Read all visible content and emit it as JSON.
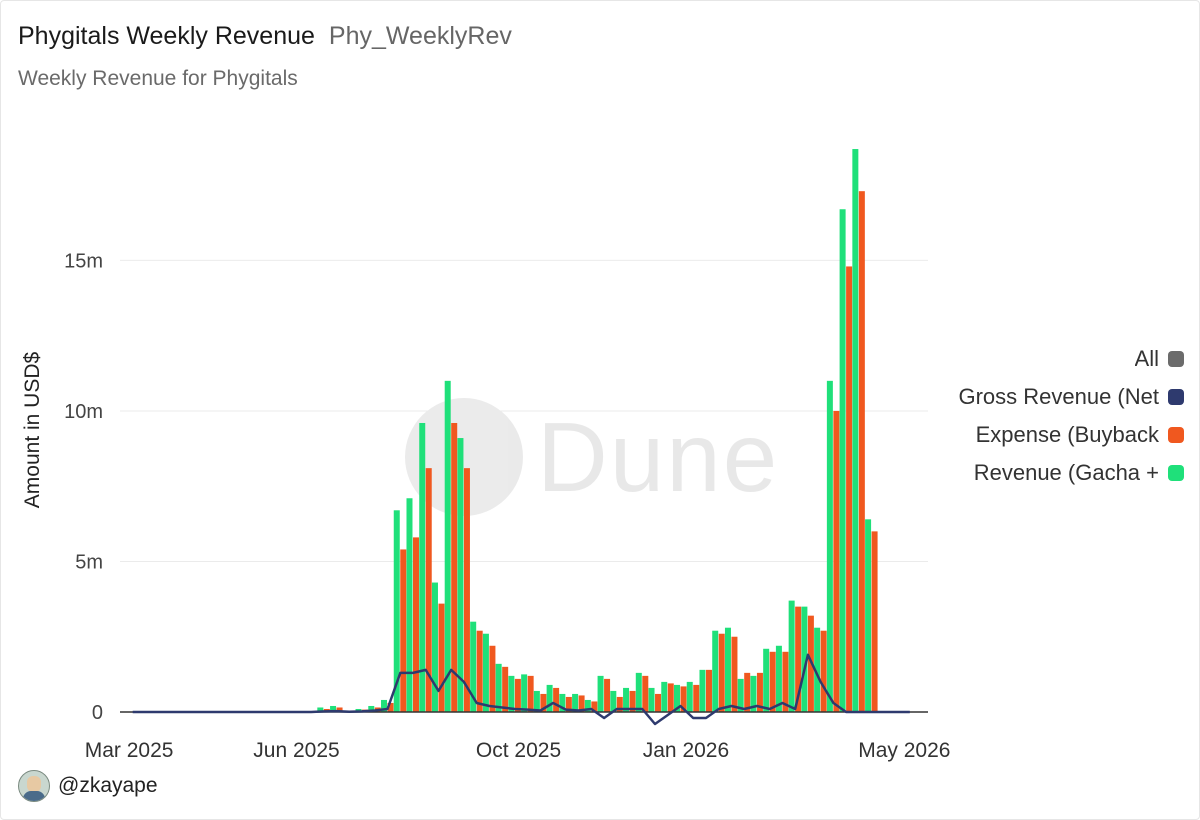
{
  "header": {
    "title": "Phygitals Weekly Revenue",
    "query_name": "Phy_WeeklyRev",
    "description": "Weekly Revenue for Phygitals"
  },
  "author": {
    "handle": "@zkayape"
  },
  "watermark": {
    "text": "Dune"
  },
  "colors": {
    "all": "#6b6b6b",
    "gross": "#2e3a6e",
    "expense": "#f0581f",
    "revenue": "#1fe07a"
  },
  "legend": {
    "items": [
      {
        "label": "All",
        "color": "#6b6b6b"
      },
      {
        "label": "Gross Revenue (Net",
        "color": "#2e3a6e"
      },
      {
        "label": "Expense (Buyback",
        "color": "#f0581f"
      },
      {
        "label": "Revenue (Gacha +",
        "color": "#1fe07a"
      }
    ]
  },
  "chart_data": {
    "type": "bar",
    "ylabel": "Amount in USD$",
    "ylim": [
      0,
      19000000
    ],
    "yticks": [
      0,
      5000000,
      10000000,
      15000000
    ],
    "ytick_labels": [
      "0",
      "5m",
      "10m",
      "15m"
    ],
    "xticks": [
      {
        "date": "2025-03-01",
        "label": "Mar 2025"
      },
      {
        "date": "2025-06-01",
        "label": "Jun 2025"
      },
      {
        "date": "2025-10-01",
        "label": "Oct 2025"
      },
      {
        "date": "2026-01-01",
        "label": "Jan 2026"
      },
      {
        "date": "2026-05-01",
        "label": "May 2026"
      }
    ],
    "x": [
      "2025-03-03",
      "2025-03-10",
      "2025-03-17",
      "2025-03-24",
      "2025-03-31",
      "2025-04-07",
      "2025-04-14",
      "2025-04-21",
      "2025-04-28",
      "2025-05-05",
      "2025-05-12",
      "2025-05-19",
      "2025-05-26",
      "2025-06-02",
      "2025-06-09",
      "2025-06-16",
      "2025-06-23",
      "2025-06-30",
      "2025-07-07",
      "2025-07-14",
      "2025-07-21",
      "2025-07-28",
      "2025-08-04",
      "2025-08-11",
      "2025-08-18",
      "2025-08-25",
      "2025-09-01",
      "2025-09-08",
      "2025-09-15",
      "2025-09-22",
      "2025-09-29",
      "2025-10-06",
      "2025-10-13",
      "2025-10-20",
      "2025-10-27",
      "2025-11-03",
      "2025-11-10",
      "2025-11-17",
      "2025-11-24",
      "2025-12-01",
      "2025-12-08",
      "2025-12-15",
      "2025-12-22",
      "2025-12-29",
      "2026-01-05",
      "2026-01-12",
      "2026-01-19",
      "2026-01-26",
      "2026-02-02",
      "2026-02-09",
      "2026-02-16",
      "2026-02-23",
      "2026-03-02",
      "2026-03-09",
      "2026-03-16",
      "2026-03-23",
      "2026-03-30",
      "2026-04-06",
      "2026-04-13",
      "2026-04-20",
      "2026-04-27",
      "2026-05-04"
    ],
    "series": [
      {
        "name": "Revenue (Gacha +",
        "kind": "bar",
        "values": [
          0,
          0,
          0,
          0,
          0,
          0,
          0,
          0,
          0,
          0,
          0,
          0,
          0,
          0,
          0,
          150000,
          200000,
          50000,
          100000,
          200000,
          400000,
          6700000,
          7100000,
          9600000,
          4300000,
          11000000,
          9100000,
          3000000,
          2600000,
          1600000,
          1200000,
          1250000,
          700000,
          900000,
          600000,
          600000,
          400000,
          1200000,
          700000,
          800000,
          1300000,
          800000,
          1000000,
          900000,
          1000000,
          1400000,
          2700000,
          2800000,
          1100000,
          1200000,
          2100000,
          2200000,
          3700000,
          3500000,
          2800000,
          11000000,
          16700000,
          18700000,
          6400000,
          0,
          0,
          0
        ]
      },
      {
        "name": "Expense (Buyback",
        "kind": "bar",
        "values": [
          0,
          0,
          0,
          0,
          0,
          0,
          0,
          0,
          0,
          0,
          0,
          0,
          0,
          0,
          0,
          100000,
          150000,
          50000,
          80000,
          150000,
          300000,
          5400000,
          5800000,
          8100000,
          3600000,
          9600000,
          8100000,
          2700000,
          2200000,
          1500000,
          1100000,
          1200000,
          600000,
          800000,
          500000,
          550000,
          350000,
          1100000,
          500000,
          700000,
          1200000,
          600000,
          950000,
          850000,
          900000,
          1400000,
          2600000,
          2500000,
          1300000,
          1300000,
          2000000,
          2000000,
          3500000,
          3200000,
          2700000,
          10000000,
          14800000,
          17300000,
          6000000,
          0,
          0,
          0
        ]
      },
      {
        "name": "Gross Revenue (Net",
        "kind": "line",
        "values": [
          0,
          0,
          0,
          0,
          0,
          0,
          0,
          0,
          0,
          0,
          0,
          0,
          0,
          0,
          0,
          20000,
          30000,
          10000,
          20000,
          50000,
          100000,
          1300000,
          1300000,
          1400000,
          700000,
          1400000,
          1000000,
          300000,
          200000,
          150000,
          100000,
          80000,
          50000,
          300000,
          80000,
          50000,
          100000,
          -200000,
          100000,
          100000,
          100000,
          -400000,
          -100000,
          200000,
          -200000,
          -200000,
          100000,
          200000,
          100000,
          200000,
          100000,
          300000,
          100000,
          1900000,
          1000000,
          300000,
          0,
          0,
          0,
          0,
          0,
          0
        ]
      }
    ]
  }
}
